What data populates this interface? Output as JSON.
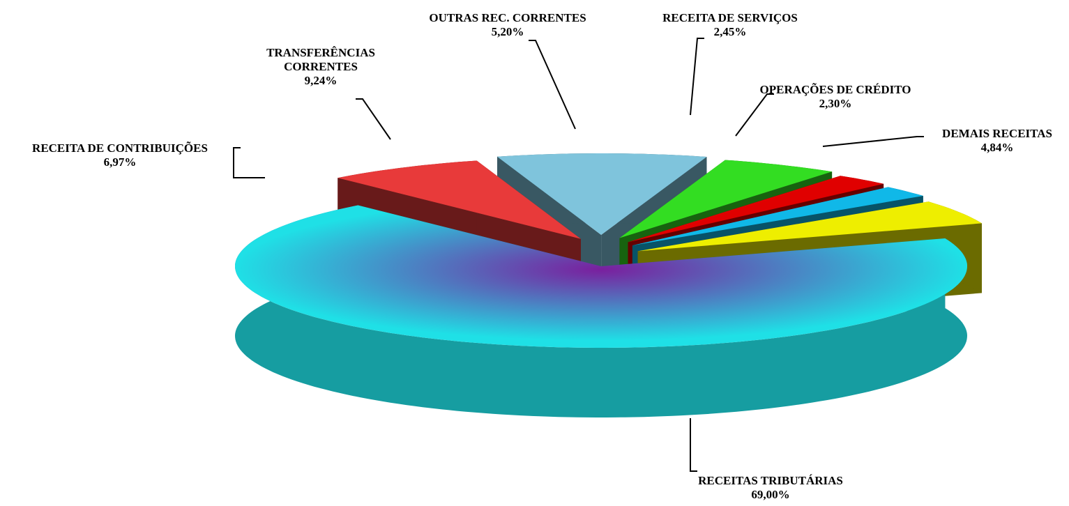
{
  "chart_data": {
    "type": "pie",
    "categories": [
      "RECEITAS TRIBUTÁRIAS",
      "RECEITA DE CONTRIBUIÇÕES",
      "TRANSFERÊNCIAS CORRENTES",
      "OUTRAS REC. CORRENTES",
      "RECEITA DE SERVIÇOS",
      "OPERAÇÕES DE CRÉDITO",
      "DEMAIS RECEITAS"
    ],
    "values": [
      69,
      6.97,
      9.24,
      5.2,
      2.45,
      2.3,
      4.84
    ],
    "value_labels": [
      "69,00%",
      "6,97%",
      "9,24%",
      "5,20%",
      "2,45%",
      "2,30%",
      "4,84%"
    ],
    "colors": [
      "#1fe0e6",
      "#e83a3a",
      "#7fc4dc",
      "#33dd22",
      "#e00000",
      "#10b8e8",
      "#eeee00"
    ]
  }
}
